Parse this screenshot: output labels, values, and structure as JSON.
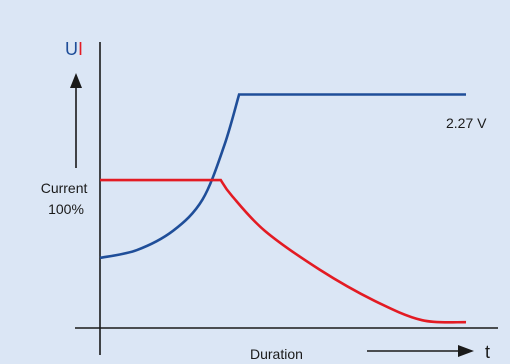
{
  "colors": {
    "background": "#dbe6f5",
    "axis": "#1a1a1a",
    "voltage": "#1f4e99",
    "current": "#e31b23"
  },
  "axes": {
    "y_label_u": "U",
    "y_label_i": "I",
    "x_label": "Duration",
    "x_unit": "t",
    "current_marker": [
      "Current",
      "100%"
    ]
  },
  "chart_data": {
    "type": "line",
    "title": "",
    "xlabel": "Duration",
    "ylabel": "UI",
    "grid": false,
    "legend": "none",
    "annotations": [
      "2.27 V",
      "Current 100%"
    ],
    "series": [
      {
        "key": "voltage",
        "color": "#1f4e99",
        "points": [
          [
            0,
            18
          ],
          [
            10,
            20
          ],
          [
            20,
            25
          ],
          [
            28,
            33
          ],
          [
            34,
            47
          ],
          [
            38,
            60
          ],
          [
            100,
            60
          ]
        ],
        "end_label": "2.27 V"
      },
      {
        "key": "current",
        "color": "#e31b23",
        "points": [
          [
            0,
            38
          ],
          [
            33,
            38
          ],
          [
            36,
            34
          ],
          [
            45,
            25
          ],
          [
            60,
            15
          ],
          [
            75,
            7
          ],
          [
            88,
            2
          ],
          [
            100,
            1.5
          ]
        ]
      }
    ],
    "xlim": [
      0,
      100
    ],
    "ylim": [
      0,
      65
    ]
  }
}
